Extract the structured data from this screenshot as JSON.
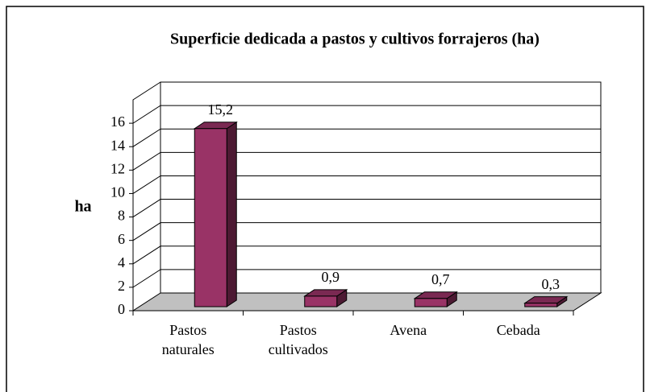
{
  "chart_data": {
    "type": "bar3d",
    "title": "Superficie dedicada a pastos y cultivos forrajeros (ha)",
    "y_label": "ha",
    "categories": [
      "Pastos naturales",
      "Pastos cultivados",
      "Avena",
      "Cebada"
    ],
    "values": [
      15.2,
      0.9,
      0.7,
      0.3
    ],
    "value_labels": [
      "15,2",
      "0,9",
      "0,7",
      "0,3"
    ],
    "color": "#993366",
    "ylim": [
      0,
      18
    ],
    "yticks": [
      0,
      2,
      4,
      6,
      8,
      10,
      12,
      14,
      16
    ],
    "grid": true
  }
}
